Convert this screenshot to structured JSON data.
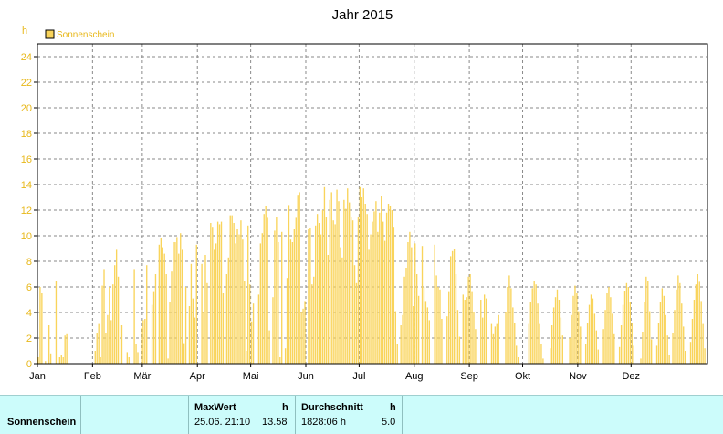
{
  "chart_data": {
    "type": "bar",
    "title": "Jahr 2015",
    "y_unit": "h",
    "ylim": [
      0,
      25
    ],
    "y_ticks": [
      0,
      2,
      4,
      6,
      8,
      10,
      12,
      14,
      16,
      18,
      20,
      22,
      24
    ],
    "x_tick_labels": [
      "Jan",
      "Feb",
      "Mär",
      "Apr",
      "Mai",
      "Jun",
      "Jul",
      "Aug",
      "Sep",
      "Okt",
      "Nov",
      "Dez"
    ],
    "grid": true,
    "legend_position": "top-left",
    "series": [
      {
        "name": "Sonnenschein",
        "color": "#f9d45b",
        "values": [
          0.5,
          6.0,
          5.5,
          0.0,
          0.2,
          0.0,
          3.0,
          0.8,
          0.0,
          0.0,
          6.5,
          0.0,
          0.5,
          0.7,
          0.5,
          2.2,
          2.3,
          0.0,
          0.0,
          0.0,
          0.0,
          0.0,
          0.0,
          0.0,
          0.0,
          0.0,
          0.0,
          0.0,
          0.0,
          0.0,
          0.0,
          0.0,
          1.0,
          2.4,
          3.1,
          0.5,
          6.1,
          7.4,
          2.4,
          3.8,
          6.0,
          3.4,
          6.2,
          7.7,
          8.9,
          6.8,
          0.0,
          3.0,
          0.0,
          0.0,
          0.9,
          0.5,
          0.0,
          0.0,
          7.4,
          1.5,
          0.9,
          0.0,
          2.8,
          3.4,
          3.5,
          7.7,
          0.0,
          0.0,
          4.6,
          5.6,
          7.0,
          0.0,
          9.3,
          9.8,
          9.1,
          8.6,
          7.0,
          0.4,
          4.8,
          7.2,
          9.5,
          9.5,
          9.9,
          8.6,
          10.2,
          8.9,
          1.6,
          6.0,
          0.0,
          4.5,
          7.8,
          5.1,
          3.6,
          9.3,
          0.0,
          0.0,
          7.8,
          4.0,
          8.5,
          6.3,
          0.0,
          11.0,
          10.7,
          8.9,
          9.4,
          11.1,
          10.9,
          11.1,
          5.5,
          0.0,
          7.0,
          8.3,
          11.6,
          11.6,
          11.0,
          9.4,
          10.5,
          10.1,
          11.2,
          9.7,
          6.5,
          1.0,
          10.8,
          6.2,
          3.3,
          4.7,
          0.0,
          0.0,
          5.4,
          9.4,
          10.2,
          11.7,
          12.3,
          11.4,
          2.6,
          0.0,
          5.2,
          10.4,
          11.5,
          9.5,
          0.5,
          10.3,
          0.0,
          1.2,
          6.7,
          12.4,
          9.7,
          9.5,
          10.5,
          11.4,
          13.2,
          13.4,
          4.0,
          4.3,
          4.9,
          0.0,
          10.5,
          10.6,
          6.2,
          6.8,
          10.8,
          11.7,
          11.0,
          10.1,
          12.0,
          13.8,
          11.5,
          8.5,
          12.8,
          13.4,
          11.2,
          10.9,
          13.6,
          12.7,
          9.1,
          8.3,
          12.8,
          12.1,
          13.7,
          12.6,
          11.5,
          11.2,
          7.7,
          6.3,
          11.5,
          13.8,
          13.0,
          13.7,
          12.5,
          11.7,
          8.9,
          10.1,
          11.1,
          11.9,
          12.7,
          10.3,
          11.8,
          13.1,
          11.1,
          9.6,
          11.8,
          12.5,
          12.3,
          12.0,
          10.7,
          4.1,
          1.5,
          0.0,
          3.0,
          3.8,
          6.8,
          7.5,
          9.5,
          10.3,
          9.1,
          4.5,
          9.4,
          7.0,
          5.3,
          0.0,
          9.2,
          6.0,
          4.9,
          4.4,
          3.4,
          0.0,
          0.0,
          9.3,
          6.9,
          6.0,
          5.8,
          3.5,
          0.0,
          0.0,
          3.7,
          5.6,
          8.4,
          8.8,
          9.0,
          7.0,
          4.2,
          2.1,
          0.0,
          5.4,
          5.0,
          5.2,
          6.8,
          7.0,
          5.6,
          4.0,
          2.7,
          0.0,
          0.0,
          5.0,
          3.6,
          5.4,
          5.1,
          0.0,
          0.0,
          3.1,
          2.3,
          2.9,
          3.1,
          3.8,
          0.0,
          0.0,
          0.0,
          4.0,
          6.0,
          6.9,
          5.9,
          4.4,
          3.2,
          1.4,
          0.5,
          0.0,
          0.0,
          0.0,
          0.0,
          0.0,
          3.1,
          4.8,
          5.9,
          6.5,
          6.2,
          4.7,
          3.1,
          1.5,
          0.4,
          0.0,
          0.0,
          0.0,
          1.2,
          3.0,
          4.4,
          5.2,
          5.8,
          5.0,
          3.6,
          2.2,
          0.0,
          0.0,
          0.0,
          2.0,
          3.8,
          5.3,
          6.1,
          5.5,
          4.1,
          2.9,
          0.0,
          0.0,
          1.5,
          3.2,
          4.6,
          5.4,
          5.1,
          3.9,
          2.6,
          1.1,
          0.0,
          0.0,
          2.7,
          4.2,
          5.5,
          6.0,
          5.2,
          3.9,
          2.3,
          0.0,
          0.0,
          1.3,
          3.0,
          4.6,
          5.7,
          6.3,
          6.0,
          4.8,
          3.2,
          1.4,
          0.0,
          0.0,
          0.0,
          0.4,
          2.5,
          4.8,
          6.8,
          6.5,
          4.1,
          1.9,
          0.0,
          0.0,
          1.4,
          3.2,
          4.8,
          5.9,
          5.3,
          3.8,
          2.2,
          0.7,
          0.0,
          2.4,
          4.2,
          5.8,
          6.9,
          6.3,
          4.7,
          2.9,
          1.0,
          0.0,
          0.0,
          1.7,
          3.5,
          5.0,
          6.2,
          7.0,
          6.4,
          4.9,
          3.1,
          1.2,
          0.0
        ]
      }
    ]
  },
  "table": {
    "row_label": "Sonnenschein",
    "max": {
      "header": "MaxWert",
      "unit": "h",
      "date_time": "25.06.  21:10",
      "value": "13.58"
    },
    "avg": {
      "header": "Durchschnitt",
      "unit": "h",
      "total": "1828:06 h",
      "value": "5.0"
    }
  }
}
